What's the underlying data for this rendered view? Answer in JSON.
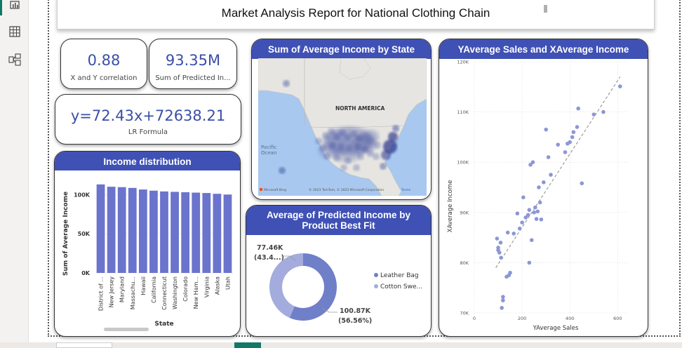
{
  "report": {
    "title": "Market Analysis Report for National Clothing Chain"
  },
  "kpis": {
    "correlation": {
      "value": "0.88",
      "label": "X and Y correlation"
    },
    "predicted": {
      "value": "93.35M",
      "label": "Sum of Predicted In..."
    },
    "formula": {
      "value": "y=72.43x+72638.21",
      "label": "LR Formula"
    }
  },
  "map": {
    "title": "Sum of Average Income by State",
    "labels": {
      "continent": "NORTH AMERICA",
      "ocean_line1": "Pacific",
      "ocean_line2": "Ocean"
    },
    "attribution": "© 2023 TomTom, © 2023 Microsoft Corporation",
    "terms": "Terms",
    "logo": "Microsoft Bing"
  },
  "income_chart": {
    "title": "Income distribution",
    "chart_data": {
      "type": "bar",
      "categories": [
        "District of ...",
        "New Jersey",
        "Maryland",
        "Massachu...",
        "Hawaii",
        "California",
        "Connecticut",
        "Washington",
        "Colorado",
        "New Ham...",
        "Virginia",
        "Alaska",
        "Utah"
      ],
      "values": [
        113000,
        110000,
        109500,
        108500,
        106500,
        105000,
        104000,
        103500,
        103000,
        102500,
        102000,
        101000,
        100000
      ],
      "xlabel": "State",
      "ylabel": "Sum of Average Income",
      "yticks": [
        "0K",
        "50K",
        "100K"
      ],
      "ylim": [
        0,
        120000
      ]
    }
  },
  "donut": {
    "title_line1": "Average of Predicted Income by",
    "title_line2": "Product Best Fit",
    "chart_data": {
      "type": "pie",
      "slices": [
        {
          "name": "Leather Bag",
          "value": 100.87,
          "label": "100.87K",
          "pct": "(56.56%)",
          "color": "#6f7fc8"
        },
        {
          "name": "Cotton Swe...",
          "value": 77.46,
          "label": "77.46K",
          "pct": "(43.4...)",
          "color": "#a3acdc"
        }
      ]
    }
  },
  "scatter": {
    "title": "YAverage Sales and XAverage Income",
    "chart_data": {
      "type": "scatter",
      "xlabel": "YAverage Sales",
      "ylabel": "XAverage Income",
      "xticks": [
        0,
        200,
        400,
        600
      ],
      "yticks": [
        "70K",
        "80K",
        "90K",
        "100K",
        "110K",
        "120K"
      ],
      "xlim": [
        0,
        640
      ],
      "ylim": [
        70000,
        120000
      ],
      "trend": {
        "x1": 90,
        "y1": 79000,
        "x2": 610,
        "y2": 117000
      },
      "points": [
        [
          95,
          84800
        ],
        [
          100,
          83000
        ],
        [
          100,
          82500
        ],
        [
          105,
          82000
        ],
        [
          110,
          84000
        ],
        [
          112,
          81000
        ],
        [
          115,
          71000
        ],
        [
          120,
          72500
        ],
        [
          120,
          73200
        ],
        [
          135,
          77200
        ],
        [
          140,
          86000
        ],
        [
          145,
          77500
        ],
        [
          150,
          78000
        ],
        [
          165,
          85800
        ],
        [
          180,
          89800
        ],
        [
          190,
          86800
        ],
        [
          200,
          88000
        ],
        [
          205,
          93000
        ],
        [
          215,
          89000
        ],
        [
          225,
          89500
        ],
        [
          230,
          90500
        ],
        [
          230,
          80000
        ],
        [
          235,
          99500
        ],
        [
          240,
          84500
        ],
        [
          245,
          100000
        ],
        [
          250,
          90000
        ],
        [
          255,
          91000
        ],
        [
          260,
          88700
        ],
        [
          265,
          90200
        ],
        [
          270,
          95000
        ],
        [
          275,
          92000
        ],
        [
          280,
          88600
        ],
        [
          290,
          96000
        ],
        [
          300,
          106500
        ],
        [
          310,
          101000
        ],
        [
          320,
          97500
        ],
        [
          350,
          103500
        ],
        [
          380,
          102000
        ],
        [
          390,
          103700
        ],
        [
          400,
          104000
        ],
        [
          410,
          105000
        ],
        [
          415,
          106000
        ],
        [
          430,
          107000
        ],
        [
          435,
          110700
        ],
        [
          450,
          95800
        ],
        [
          500,
          109500
        ],
        [
          540,
          110000
        ],
        [
          610,
          115100
        ]
      ],
      "point_color": "#8c97d6"
    }
  },
  "colors": {
    "accent": "#3f51b5",
    "kpi_value": "#3b4ea8",
    "bar": "#6b74cc",
    "map_water": "#a8c8ef",
    "map_land": "#e6e5e1"
  }
}
